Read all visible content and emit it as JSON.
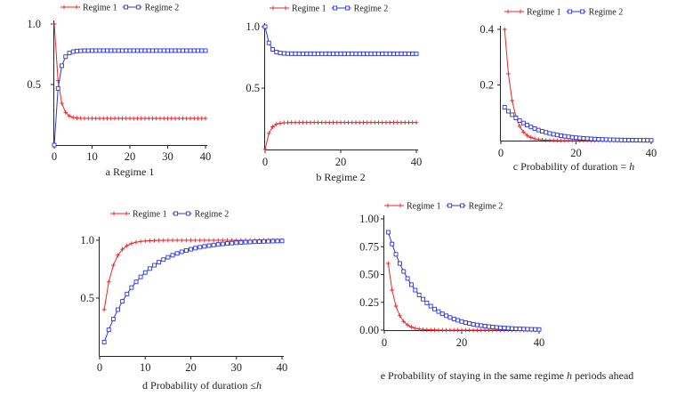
{
  "colors": {
    "regime1": "#e8262a",
    "regime2": "#2d35d8",
    "axis": "#222222"
  },
  "chart_data": [
    {
      "id": "a",
      "type": "line",
      "caption": "a Regime 1",
      "xlim": [
        0,
        40
      ],
      "ylim": [
        0,
        1
      ],
      "xticks": [
        "0",
        "10",
        "20",
        "30",
        "40"
      ],
      "yticks": [
        {
          "v": 1.0,
          "label": "1.0"
        },
        {
          "v": 0.5,
          "label": "0.5"
        }
      ],
      "legend": [
        "Regime 1",
        "Regime 2"
      ],
      "series": [
        {
          "name": "Regime 1",
          "marker": "plus",
          "func": "decay",
          "start": 1.0,
          "end": 0.22,
          "rate": 0.6
        },
        {
          "name": "Regime 2",
          "marker": "square",
          "func": "decay",
          "start": 0.0,
          "end": 0.78,
          "rate": 0.6
        }
      ]
    },
    {
      "id": "b",
      "type": "line",
      "caption": "b Regime 2",
      "xlim": [
        0,
        40
      ],
      "ylim": [
        0,
        1
      ],
      "xticks": [
        "0",
        "20",
        "40"
      ],
      "yticks": [
        {
          "v": 1.0,
          "label": "1.0"
        },
        {
          "v": 0.5,
          "label": "0.5"
        }
      ],
      "legend": [
        "Regime 1",
        "Regime 2"
      ],
      "series": [
        {
          "name": "Regime 1",
          "marker": "plus",
          "func": "decay",
          "start": 0.0,
          "end": 0.22,
          "rate": 0.6
        },
        {
          "name": "Regime 2",
          "marker": "square",
          "func": "decay",
          "start": 1.0,
          "end": 0.78,
          "rate": 0.6
        }
      ]
    },
    {
      "id": "c",
      "type": "line",
      "caption": "c Probability of duration = ",
      "caption_var": "h",
      "xlim": [
        0,
        40
      ],
      "ylim": [
        0,
        0.4
      ],
      "xticks": [
        "0",
        "20",
        "40"
      ],
      "yticks": [
        {
          "v": 0.4,
          "label": "0.4"
        },
        {
          "v": 0.2,
          "label": "0.2"
        }
      ],
      "legend": [
        "Regime 1",
        "Regime 2"
      ],
      "series": [
        {
          "name": "Regime 1",
          "marker": "plus",
          "func": "geom",
          "a": 0.4,
          "p": 0.6,
          "x0": 1
        },
        {
          "name": "Regime 2",
          "marker": "square",
          "func": "geom",
          "a": 0.12,
          "p": 0.88,
          "x0": 1
        }
      ]
    },
    {
      "id": "d",
      "type": "line",
      "caption": "d Probability of duration ≤",
      "caption_var": "h",
      "xlim": [
        0,
        40
      ],
      "ylim": [
        0,
        1
      ],
      "xticks": [
        "0",
        "10",
        "20",
        "30",
        "40"
      ],
      "yticks": [
        {
          "v": 1.0,
          "label": "1.0"
        },
        {
          "v": 0.5,
          "label": "0.5"
        }
      ],
      "legend": [
        "Regime 1",
        "Regime 2"
      ],
      "series": [
        {
          "name": "Regime 1",
          "marker": "plus",
          "func": "cdf",
          "p": 0.6,
          "x0": 1
        },
        {
          "name": "Regime 2",
          "marker": "square",
          "func": "cdf",
          "p": 0.88,
          "x0": 1
        }
      ]
    },
    {
      "id": "e",
      "type": "line",
      "caption": "e Probability of staying in the same regime ",
      "caption_var": "h",
      "caption_tail": " periods ahead",
      "xlim": [
        0,
        40
      ],
      "ylim": [
        0,
        1
      ],
      "xticks": [
        "0",
        "20",
        "40"
      ],
      "yticks": [
        {
          "v": 1.0,
          "label": "1.00"
        },
        {
          "v": 0.75,
          "label": "0.75"
        },
        {
          "v": 0.5,
          "label": "0.50"
        },
        {
          "v": 0.25,
          "label": "0.25"
        },
        {
          "v": 0.0,
          "label": "0.00"
        }
      ],
      "legend": [
        "Regime 1",
        "Regime 2"
      ],
      "series": [
        {
          "name": "Regime 1",
          "marker": "plus",
          "func": "pow",
          "p": 0.6,
          "x0": 1
        },
        {
          "name": "Regime 2",
          "marker": "square",
          "func": "pow",
          "p": 0.88,
          "x0": 1
        }
      ]
    }
  ]
}
